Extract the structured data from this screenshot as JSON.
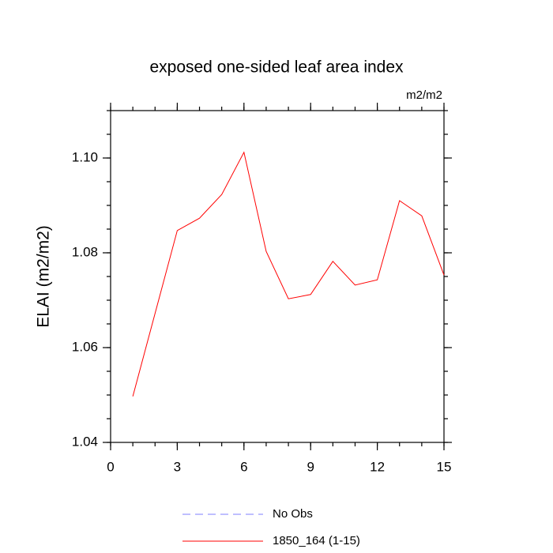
{
  "chart_data": {
    "type": "line",
    "title": "exposed one-sided leaf area index",
    "units": "m2/m2",
    "y_label": "ELAI  (m2/m2)",
    "x": [
      1,
      2,
      3,
      4,
      5,
      6,
      7,
      8,
      9,
      10,
      11,
      12,
      13,
      14,
      15
    ],
    "series": [
      {
        "name": "No Obs",
        "color": "#7f7fff",
        "dashed": true,
        "values": [
          null,
          null,
          null,
          null,
          null,
          null,
          null,
          null,
          null,
          null,
          null,
          null,
          null,
          null,
          null
        ]
      },
      {
        "name": "1850_164 (1-15)",
        "color": "#ff0000",
        "dashed": false,
        "values": [
          1.0497,
          1.0672,
          1.0847,
          1.0873,
          1.0923,
          1.1012,
          1.0803,
          1.0703,
          1.0712,
          1.0782,
          1.0732,
          1.0743,
          1.091,
          1.0878,
          1.0753
        ]
      }
    ],
    "xlim": [
      0,
      15
    ],
    "xticks": [
      0,
      3,
      6,
      9,
      12,
      15
    ],
    "xminor": 1,
    "ylim": [
      1.04,
      1.11
    ],
    "yticks": [
      1.04,
      1.06,
      1.08,
      {
        "value": 1.1,
        "label": "1.10"
      }
    ],
    "yminor": 0.005
  }
}
